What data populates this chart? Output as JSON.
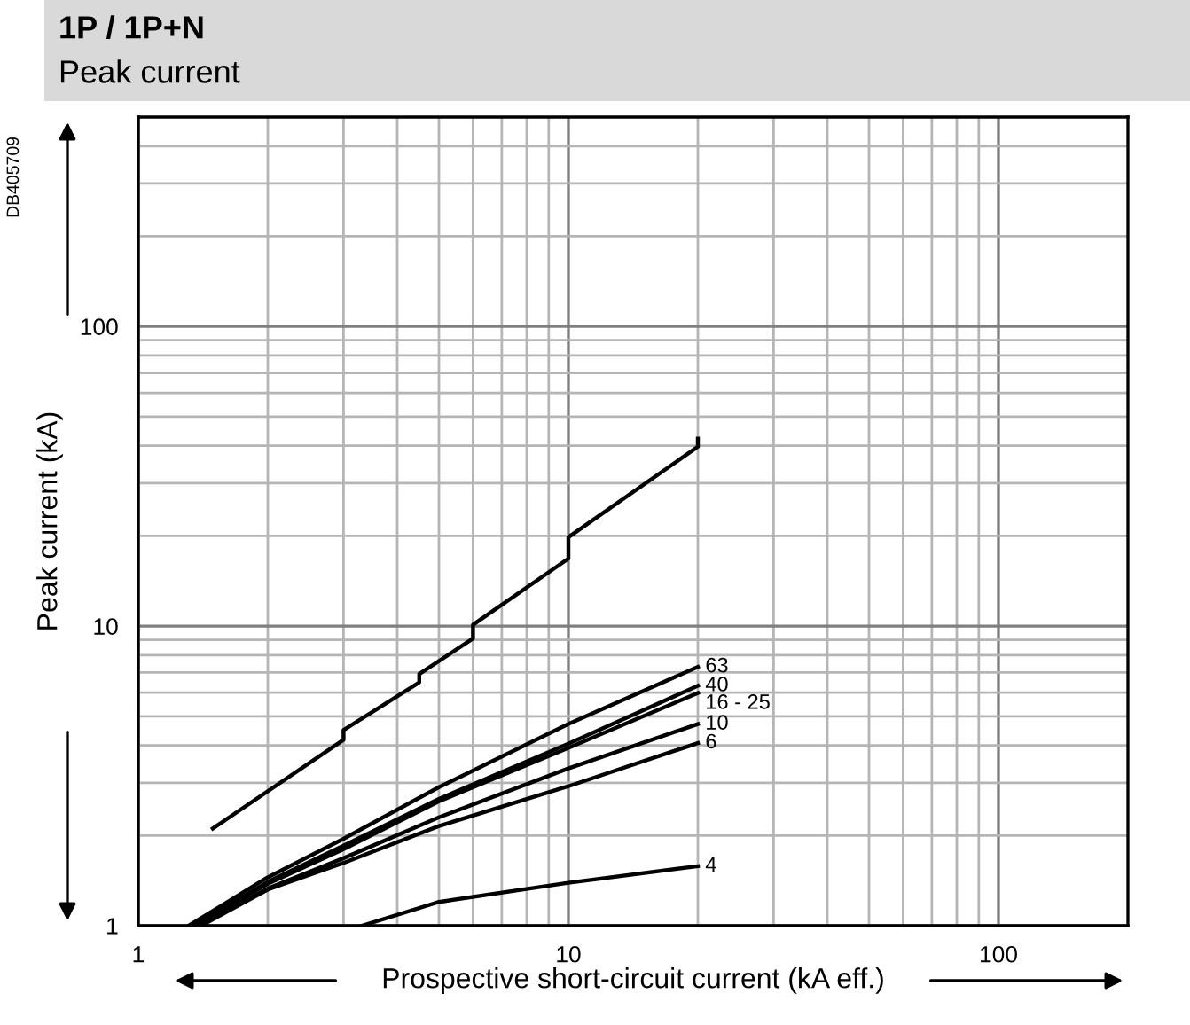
{
  "chart_data": {
    "type": "line",
    "title": "1P / 1P+N",
    "subtitle": "Peak current",
    "xlabel": "Prospective short-circuit current (kA eff.)",
    "ylabel": "Peak current (kA)",
    "annotations": [
      "DB405709"
    ],
    "log": "xy",
    "grid": true,
    "legend": false,
    "marker": "none",
    "line_style": "solid",
    "xlim": [
      1,
      200
    ],
    "ylim": [
      1,
      500
    ],
    "xticks": [
      1,
      10,
      100
    ],
    "yticks": [
      1,
      10,
      100
    ],
    "series": [
      {
        "color": "#000000",
        "x": [
          1.49,
          3,
          3,
          4.5,
          4.5,
          6,
          6,
          10,
          10,
          20,
          20
        ],
        "values": [
          2.11,
          4.17,
          4.5,
          6.49,
          6.92,
          9.09,
          10.1,
          16.8,
          19.8,
          39.7,
          42.2
        ]
      },
      {
        "name": "63",
        "color": "#000000",
        "x": [
          1.31,
          2,
          3,
          5,
          10,
          20
        ],
        "values": [
          1,
          1.45,
          1.95,
          2.9,
          4.71,
          7.31
        ]
      },
      {
        "name": "40",
        "color": "#000000",
        "x": [
          1.35,
          2,
          3,
          5,
          10,
          20
        ],
        "values": [
          1,
          1.4,
          1.85,
          2.65,
          4.05,
          6.32
        ]
      },
      {
        "name": "16 - 25",
        "color": "#000000",
        "x": [
          1.35,
          2,
          3,
          5,
          10,
          20
        ],
        "values": [
          1,
          1.38,
          1.8,
          2.6,
          3.92,
          5.98
        ]
      },
      {
        "name": "10",
        "color": "#000000",
        "x": [
          1.37,
          2,
          3,
          5,
          10,
          20
        ],
        "values": [
          1,
          1.33,
          1.68,
          2.3,
          3.35,
          4.71
        ]
      },
      {
        "name": "6",
        "color": "#000000",
        "x": [
          1.4,
          2,
          3,
          5,
          10,
          20
        ],
        "values": [
          1,
          1.32,
          1.62,
          2.15,
          2.92,
          4.07
        ]
      },
      {
        "name": "4",
        "color": "#000000",
        "x": [
          3.31,
          5,
          10,
          20
        ],
        "values": [
          1,
          1.2,
          1.39,
          1.58
        ]
      }
    ]
  }
}
